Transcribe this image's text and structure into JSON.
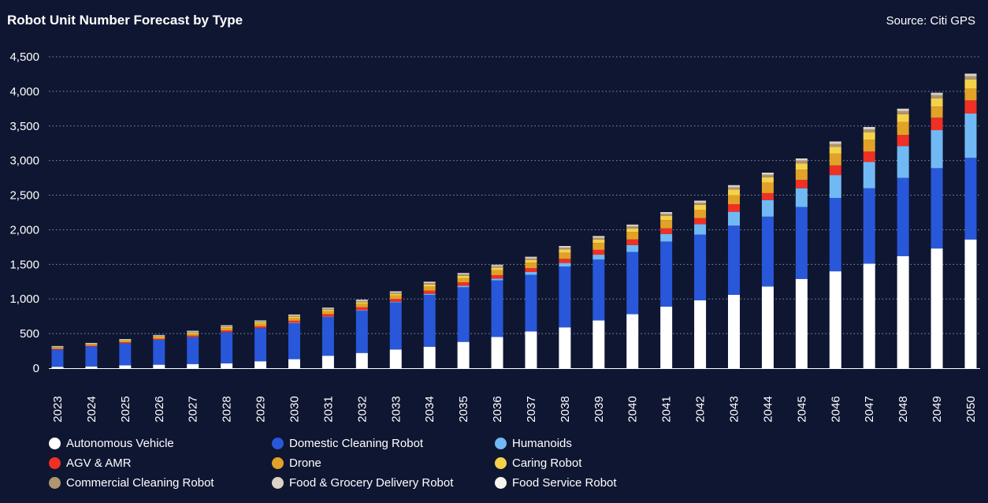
{
  "title": "Robot Unit Number Forecast by Type",
  "source": "Source: Citi GPS",
  "chart_data": {
    "type": "bar",
    "stacked": true,
    "title": "Robot Unit Number Forecast by Type",
    "xlabel": "",
    "ylabel": "",
    "ylim": [
      0,
      4500
    ],
    "yticks": [
      0,
      500,
      1000,
      1500,
      2000,
      2500,
      3000,
      3500,
      4000,
      4500
    ],
    "ytick_labels": [
      "0",
      "500",
      "1,000",
      "1,500",
      "2,000",
      "2,500",
      "3,000",
      "3,500",
      "4,000",
      "4,500"
    ],
    "grid": "horizontal dotted",
    "legend_position": "bottom",
    "categories": [
      "2023",
      "2024",
      "2025",
      "2026",
      "2027",
      "2028",
      "2029",
      "2030",
      "2031",
      "2032",
      "2033",
      "2034",
      "2035",
      "2036",
      "2037",
      "2038",
      "2039",
      "2040",
      "2041",
      "2042",
      "2043",
      "2044",
      "2045",
      "2046",
      "2047",
      "2048",
      "2049",
      "2050"
    ],
    "series": [
      {
        "name": "Autonomous Vehicle",
        "color": "#ffffff",
        "values": [
          20,
          25,
          40,
          50,
          60,
          70,
          100,
          130,
          180,
          220,
          270,
          310,
          380,
          450,
          530,
          590,
          690,
          780,
          890,
          980,
          1060,
          1180,
          1290,
          1400,
          1510,
          1620,
          1730,
          1860
        ]
      },
      {
        "name": "Domestic Cleaning Robot",
        "color": "#2957d9",
        "values": [
          250,
          290,
          320,
          360,
          390,
          450,
          480,
          520,
          560,
          610,
          680,
          750,
          790,
          820,
          820,
          880,
          880,
          900,
          940,
          950,
          1000,
          1010,
          1040,
          1060,
          1090,
          1130,
          1160,
          1180
        ]
      },
      {
        "name": "Humanoids",
        "color": "#71b9f5",
        "values": [
          0,
          0,
          0,
          0,
          0,
          0,
          0,
          5,
          5,
          10,
          10,
          15,
          20,
          25,
          40,
          50,
          70,
          100,
          110,
          150,
          200,
          240,
          270,
          330,
          380,
          460,
          550,
          640
        ]
      },
      {
        "name": "AGV & AMR",
        "color": "#ef3024",
        "values": [
          10,
          10,
          15,
          15,
          20,
          25,
          25,
          30,
          35,
          40,
          40,
          45,
          50,
          50,
          55,
          60,
          70,
          80,
          80,
          90,
          110,
          100,
          120,
          140,
          150,
          160,
          180,
          190
        ]
      },
      {
        "name": "Drone",
        "color": "#e2a227",
        "values": [
          20,
          20,
          20,
          25,
          30,
          35,
          40,
          40,
          45,
          50,
          50,
          60,
          60,
          70,
          80,
          90,
          100,
          110,
          120,
          120,
          130,
          150,
          150,
          170,
          170,
          190,
          160,
          170
        ]
      },
      {
        "name": "Caring Robot",
        "color": "#f5d24a",
        "values": [
          5,
          5,
          10,
          10,
          15,
          15,
          20,
          20,
          20,
          25,
          25,
          30,
          35,
          40,
          40,
          45,
          50,
          50,
          60,
          70,
          80,
          80,
          90,
          100,
          110,
          110,
          120,
          130
        ]
      },
      {
        "name": "Commercial Cleaning Robot",
        "color": "#b0966e",
        "values": [
          5,
          5,
          5,
          10,
          10,
          10,
          10,
          15,
          15,
          15,
          15,
          20,
          20,
          20,
          20,
          25,
          25,
          30,
          30,
          30,
          35,
          35,
          40,
          40,
          40,
          45,
          45,
          50
        ]
      },
      {
        "name": "Food & Grocery Delivery Robot",
        "color": "#ddd2c6",
        "values": [
          5,
          5,
          5,
          5,
          10,
          10,
          10,
          10,
          10,
          15,
          15,
          15,
          15,
          15,
          20,
          20,
          20,
          20,
          20,
          25,
          25,
          25,
          25,
          30,
          30,
          30,
          30,
          30
        ]
      },
      {
        "name": "Food Service Robot",
        "color": "#f7f3ee",
        "values": [
          5,
          5,
          5,
          5,
          5,
          5,
          5,
          5,
          5,
          5,
          5,
          5,
          5,
          5,
          5,
          5,
          5,
          5,
          5,
          5,
          5,
          5,
          5,
          5,
          5,
          5,
          5,
          5
        ]
      }
    ]
  }
}
